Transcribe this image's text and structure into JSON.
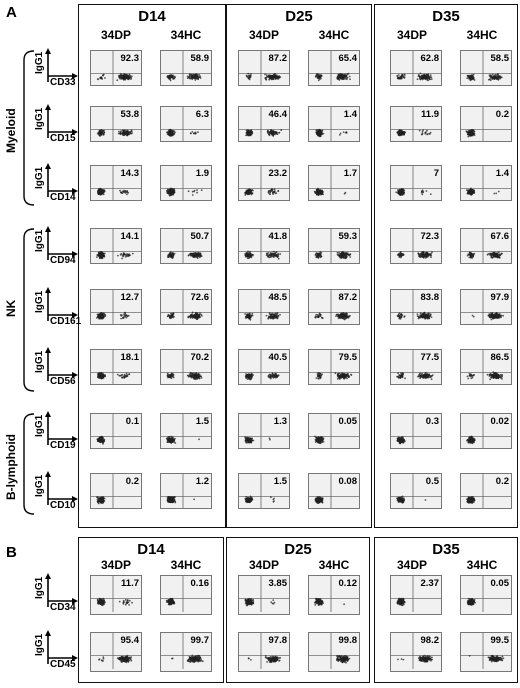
{
  "panelA": {
    "letter": "A",
    "days": [
      "D14",
      "D25",
      "D35"
    ],
    "conditions": [
      "34DP",
      "34HC"
    ],
    "groups": [
      {
        "label": "Myeloid",
        "rows": [
          0,
          2
        ]
      },
      {
        "label": "NK",
        "rows": [
          3,
          5
        ]
      },
      {
        "label": "B-lymphoid",
        "rows": [
          6,
          7
        ]
      }
    ],
    "rows": [
      {
        "y": "IgG1",
        "x": "CD33",
        "values": [
          "92.3",
          "58.9",
          "87.2",
          "65.4",
          "62.8",
          "58.5"
        ]
      },
      {
        "y": "IgG1",
        "x": "CD15",
        "values": [
          "53.8",
          "6.3",
          "46.4",
          "1.4",
          "11.9",
          "0.2"
        ]
      },
      {
        "y": "IgG1",
        "x": "CD14",
        "values": [
          "14.3",
          "1.9",
          "23.2",
          "1.7",
          "7",
          "1.4"
        ]
      },
      {
        "y": "IgG1",
        "x": "CD94",
        "values": [
          "14.1",
          "50.7",
          "41.8",
          "59.3",
          "72.3",
          "67.6"
        ]
      },
      {
        "y": "IgG1",
        "x": "CD161",
        "values": [
          "12.7",
          "72.6",
          "48.5",
          "87.2",
          "83.8",
          "97.9"
        ]
      },
      {
        "y": "IgG1",
        "x": "CD56",
        "values": [
          "18.1",
          "70.2",
          "40.5",
          "79.5",
          "77.5",
          "86.5"
        ]
      },
      {
        "y": "IgG1",
        "x": "CD19",
        "values": [
          "0.1",
          "1.5",
          "1.3",
          "0.05",
          "0.3",
          "0.02"
        ]
      },
      {
        "y": "IgG1",
        "x": "CD10",
        "values": [
          "0.2",
          "1.2",
          "1.5",
          "0.08",
          "0.5",
          "0.2"
        ]
      }
    ]
  },
  "panelB": {
    "letter": "B",
    "days": [
      "D14",
      "D25",
      "D35"
    ],
    "conditions": [
      "34DP",
      "34HC"
    ],
    "rows": [
      {
        "y": "IgG1",
        "x": "CD34",
        "values": [
          "11.7",
          "0.16",
          "3.85",
          "0.12",
          "2.37",
          "0.05"
        ]
      },
      {
        "y": "IgG1",
        "x": "CD45",
        "values": [
          "95.4",
          "99.7",
          "97.8",
          "99.8",
          "98.2",
          "99.5"
        ]
      }
    ]
  }
}
